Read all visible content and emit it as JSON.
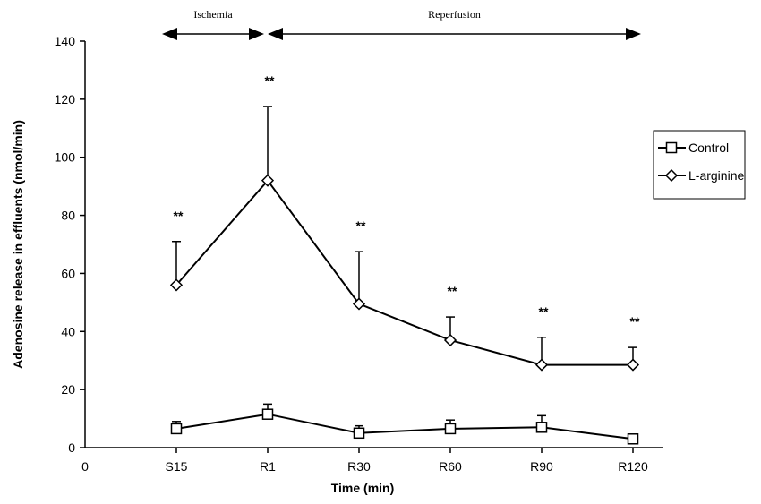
{
  "chart_data": {
    "type": "line",
    "xlabel": "Time (min)",
    "ylabel": "Adenosine release in effluents (nmol/min)",
    "x_origin_label": "0",
    "categories": [
      "S15",
      "R1",
      "R30",
      "R60",
      "R90",
      "R120"
    ],
    "ylim": [
      0,
      140
    ],
    "yticks": [
      0,
      20,
      40,
      60,
      80,
      100,
      120,
      140
    ],
    "grid": false,
    "legend_position": "top-right",
    "series": [
      {
        "name": "Control",
        "marker": "square",
        "values": [
          6.5,
          11.5,
          5,
          6.5,
          7,
          3
        ],
        "errors": [
          2.5,
          3.5,
          2.5,
          3,
          4,
          0
        ]
      },
      {
        "name": "L-arginine",
        "marker": "diamond",
        "values": [
          56,
          92,
          49.5,
          37,
          28.5,
          28.5
        ],
        "errors": [
          15,
          25.5,
          18,
          8,
          9.5,
          6
        ]
      }
    ],
    "significance_marks": [
      "**",
      "**",
      "**",
      "**",
      "**",
      "**"
    ],
    "phases": [
      {
        "label": "Ischemia",
        "from": "S15",
        "to": "R1"
      },
      {
        "label": "Reperfusion",
        "from": "R1",
        "to": "R120"
      }
    ]
  }
}
